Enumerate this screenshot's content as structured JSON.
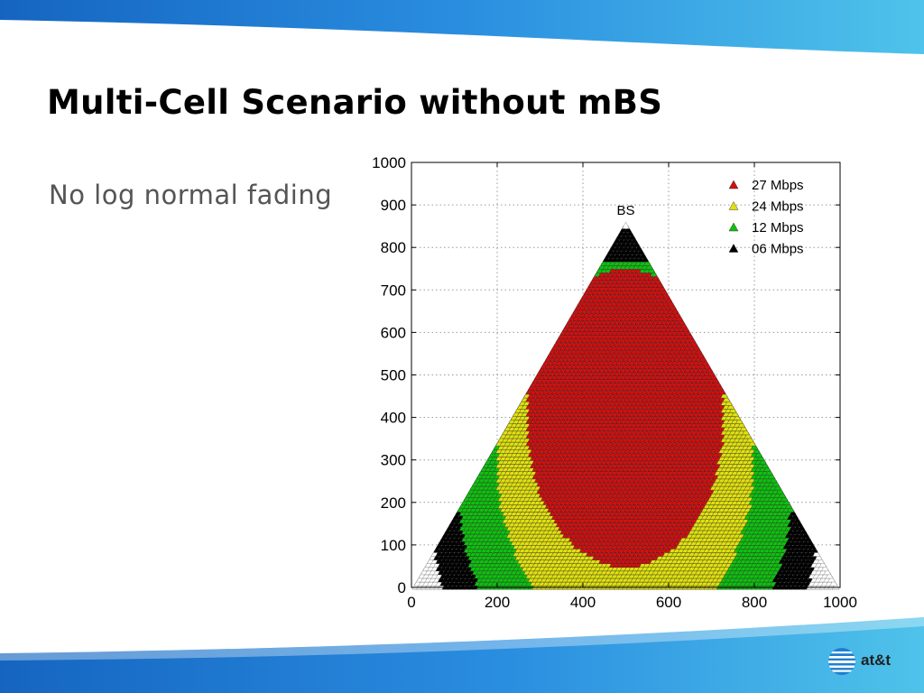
{
  "slide": {
    "title": "Multi-Cell Scenario without mBS",
    "bullet": "No log normal fading",
    "logo_text": "at&t"
  },
  "colors": {
    "swoosh_light": "#4fc3ea",
    "swoosh_dark": "#1565c0",
    "rate_27": "#d01010",
    "rate_24": "#e0e010",
    "rate_12": "#10c010",
    "rate_06": "#000000",
    "no_coverage": "#ffffff"
  },
  "chart_data": {
    "type": "scatter",
    "title": "",
    "xlabel": "",
    "ylabel": "",
    "xlim": [
      0,
      1000
    ],
    "ylim": [
      0,
      1000
    ],
    "xticks": [
      0,
      200,
      400,
      600,
      800,
      1000
    ],
    "yticks": [
      0,
      100,
      200,
      300,
      400,
      500,
      600,
      700,
      800,
      900,
      1000
    ],
    "grid": true,
    "legend_position": "top-right",
    "marker": "triangle",
    "bs": {
      "label": "BS",
      "x": 500,
      "y": 866
    },
    "cell_triangle": [
      [
        0,
        0
      ],
      [
        500,
        866
      ],
      [
        1000,
        0
      ]
    ],
    "series": [
      {
        "name": "27 Mbps",
        "color": "#d01010"
      },
      {
        "name": "24 Mbps",
        "color": "#e0e010"
      },
      {
        "name": "12 Mbps",
        "color": "#10c010"
      },
      {
        "name": "06 Mbps",
        "color": "#000000"
      }
    ],
    "regions": [
      {
        "series": "27 Mbps",
        "shape": "ellipse",
        "cx": 500,
        "cy": 400,
        "rx": 230,
        "ry": 350
      },
      {
        "series": "24 Mbps",
        "shape": "ellipse",
        "cx": 500,
        "cy": 300,
        "rx": 300,
        "ry": 420
      },
      {
        "series": "12 Mbps",
        "shape": "ellipse",
        "cx": 500,
        "cy": 250,
        "rx": 390,
        "ry": 520
      },
      {
        "series": "06 Mbps",
        "shape": "ellipse",
        "cx": 500,
        "cy": 200,
        "rx": 450,
        "ry": 650
      }
    ]
  }
}
